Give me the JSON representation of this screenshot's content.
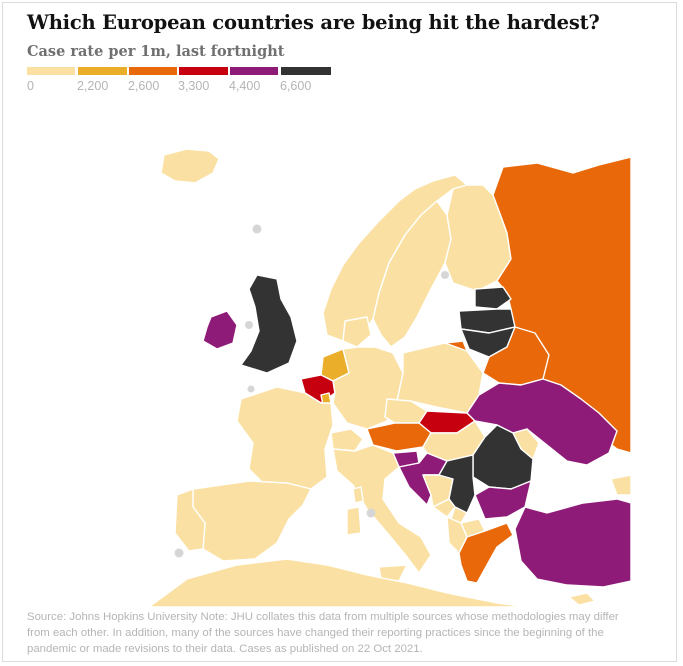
{
  "header": {
    "title": "Which European countries are being hit the hardest?",
    "subtitle": "Case rate per 1m, last fortnight"
  },
  "legend": {
    "bins": [
      {
        "label": "0",
        "color": "#fae1a3"
      },
      {
        "label": "2,200",
        "color": "#eaae2b"
      },
      {
        "label": "2,600",
        "color": "#e8680a"
      },
      {
        "label": "3,300",
        "color": "#c70010"
      },
      {
        "label": "4,400",
        "color": "#8f1b78"
      },
      {
        "label": "6,600",
        "color": "#333333"
      }
    ]
  },
  "colors": {
    "sea": "#ffffff",
    "border": "#ffffff",
    "no_data": "#d8d8d8"
  },
  "regions": [
    {
      "name": "Iceland",
      "bin": 0
    },
    {
      "name": "Norway",
      "bin": 0
    },
    {
      "name": "Sweden",
      "bin": 0
    },
    {
      "name": "Finland",
      "bin": 0
    },
    {
      "name": "Russia",
      "bin": 2
    },
    {
      "name": "Estonia",
      "bin": 5
    },
    {
      "name": "Latvia",
      "bin": 5
    },
    {
      "name": "Lithuania",
      "bin": 5
    },
    {
      "name": "Belarus",
      "bin": 2
    },
    {
      "name": "Ireland",
      "bin": 4
    },
    {
      "name": "United Kingdom",
      "bin": 5
    },
    {
      "name": "Netherlands",
      "bin": 1
    },
    {
      "name": "Belgium",
      "bin": 3
    },
    {
      "name": "Luxembourg",
      "bin": 1
    },
    {
      "name": "Denmark",
      "bin": 0
    },
    {
      "name": "Germany",
      "bin": 0
    },
    {
      "name": "Poland",
      "bin": 0
    },
    {
      "name": "Kaliningrad",
      "bin": 2
    },
    {
      "name": "France",
      "bin": 0
    },
    {
      "name": "Switzerland",
      "bin": 0
    },
    {
      "name": "Czechia",
      "bin": 0
    },
    {
      "name": "Slovakia",
      "bin": 3
    },
    {
      "name": "Austria",
      "bin": 2
    },
    {
      "name": "Hungary",
      "bin": 0
    },
    {
      "name": "Ukraine",
      "bin": 4
    },
    {
      "name": "Moldova",
      "bin": 0
    },
    {
      "name": "Romania",
      "bin": 5
    },
    {
      "name": "Slovenia",
      "bin": 4
    },
    {
      "name": "Croatia",
      "bin": 4
    },
    {
      "name": "Bosnia and Herzegovina",
      "bin": 0
    },
    {
      "name": "Serbia",
      "bin": 5
    },
    {
      "name": "Montenegro",
      "bin": 0
    },
    {
      "name": "Kosovo",
      "bin": 0
    },
    {
      "name": "North Macedonia",
      "bin": 0
    },
    {
      "name": "Albania",
      "bin": 0
    },
    {
      "name": "Bulgaria",
      "bin": 4
    },
    {
      "name": "Greece",
      "bin": 2
    },
    {
      "name": "Turkey",
      "bin": 4
    },
    {
      "name": "Cyprus",
      "bin": 0
    },
    {
      "name": "Georgia",
      "bin": 0
    },
    {
      "name": "Italy",
      "bin": 0
    },
    {
      "name": "Spain",
      "bin": 0
    },
    {
      "name": "Portugal",
      "bin": 0
    },
    {
      "name": "North Africa",
      "bin": 0
    }
  ],
  "footnote": "Source: Johns Hopkins University Note: JHU collates this data from multiple sources whose methodologies may differ from each other. In addition, many of the sources have changed their reporting practices since the beginning of the pandemic or made revisions to their data. Cases as published on 22 Oct 2021."
}
